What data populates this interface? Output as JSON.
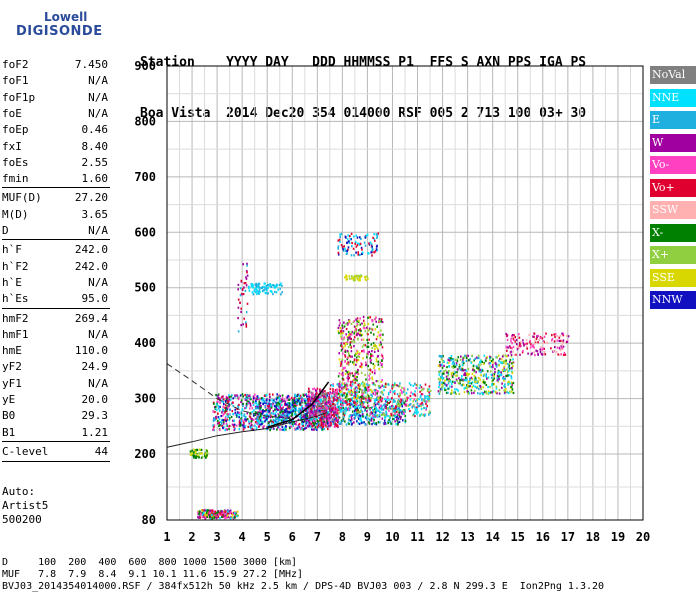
{
  "logo": {
    "line1": "Lowell",
    "line2": "DIGISONDE"
  },
  "header": {
    "line1": "Station    YYYY DAY   DDD HHMMSS P1  FFS S AXN PPS IGA PS",
    "line2": "Boa Vista  2014 Dec20 354 014000 RSF 005 2 713 100 03+ 30"
  },
  "params": {
    "group1": [
      {
        "k": "foF2",
        "v": "7.450"
      },
      {
        "k": "foF1",
        "v": "N/A"
      },
      {
        "k": "foF1p",
        "v": "N/A"
      },
      {
        "k": "foE",
        "v": "N/A"
      },
      {
        "k": "foEp",
        "v": "0.46"
      },
      {
        "k": "fxI",
        "v": "8.40"
      },
      {
        "k": "foEs",
        "v": "2.55"
      },
      {
        "k": "fmin",
        "v": "1.60"
      }
    ],
    "group2": [
      {
        "k": "MUF(D)",
        "v": "27.20"
      },
      {
        "k": "M(D)",
        "v": "3.65"
      },
      {
        "k": "D",
        "v": "N/A"
      }
    ],
    "group3": [
      {
        "k": "h`F",
        "v": "242.0"
      },
      {
        "k": "h`F2",
        "v": "242.0"
      },
      {
        "k": "h`E",
        "v": "N/A"
      },
      {
        "k": "h`Es",
        "v": "95.0"
      }
    ],
    "group4": [
      {
        "k": "hmF2",
        "v": "269.4"
      },
      {
        "k": "hmF1",
        "v": "N/A"
      },
      {
        "k": "hmE",
        "v": "110.0"
      },
      {
        "k": "yF2",
        "v": "24.9"
      },
      {
        "k": "yF1",
        "v": "N/A"
      },
      {
        "k": "yE",
        "v": "20.0"
      },
      {
        "k": "B0",
        "v": "29.3"
      },
      {
        "k": "B1",
        "v": "1.21"
      }
    ],
    "clevel": {
      "k": "C-level",
      "v": "44"
    }
  },
  "auto": {
    "line1": "Auto:",
    "line2": "Artist5",
    "line3": "500200"
  },
  "legend": [
    {
      "label": "NoVal",
      "color": "#808080"
    },
    {
      "label": "NNE",
      "color": "#00e0ff"
    },
    {
      "label": "E",
      "color": "#20b0e0"
    },
    {
      "label": "W",
      "color": "#a000a0"
    },
    {
      "label": "Vo-",
      "color": "#ff40c0"
    },
    {
      "label": "Vo+",
      "color": "#e00030"
    },
    {
      "label": "SSW",
      "color": "#ffb0b0"
    },
    {
      "label": "X-",
      "color": "#008000"
    },
    {
      "label": "X+",
      "color": "#90d040"
    },
    {
      "label": "SSE",
      "color": "#d8d800"
    },
    {
      "label": "NNW",
      "color": "#1010c0"
    }
  ],
  "axes": {
    "y_ticks": [
      "900",
      "800",
      "700",
      "600",
      "500",
      "400",
      "300",
      "200",
      "80"
    ],
    "x_ticks": [
      "1",
      "2",
      "3",
      "4",
      "5",
      "6",
      "7",
      "8",
      "9",
      "10",
      "11",
      "12",
      "13",
      "14",
      "15",
      "16",
      "17",
      "18",
      "19",
      "20"
    ]
  },
  "bottom": {
    "line1": "D     100  200  400  600  800 1000 1500 3000 [km]",
    "line2": "MUF   7.8  7.9  8.4  9.1 10.1 11.6 15.9 27.2 [MHz]",
    "line3": "BVJ03_2014354014000.RSF / 384fx512h 50 kHz 2.5 km / DPS-4D BVJ03 003 / 2.8 N 299.3 E  Ion2Png 1.3.20"
  }
}
